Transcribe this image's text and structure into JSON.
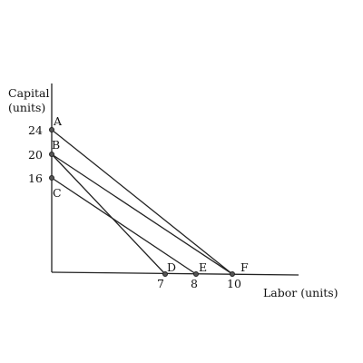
{
  "y_axis_label_line1": "Capital",
  "y_axis_label_line2": "(units)",
  "x_axis_label": "Labor (units)",
  "y_ticks": [
    "24",
    "20",
    "16"
  ],
  "x_ticks": [
    "7",
    "8",
    "10"
  ],
  "point_labels": {
    "A": "A",
    "B": "B",
    "C": "C",
    "D": "D",
    "E": "E",
    "F": "F"
  },
  "lines": [
    {
      "from": "A",
      "to": "F"
    },
    {
      "from": "B",
      "to": "F"
    },
    {
      "from": "B",
      "to": "D"
    },
    {
      "from": "C",
      "to": "E"
    }
  ]
}
